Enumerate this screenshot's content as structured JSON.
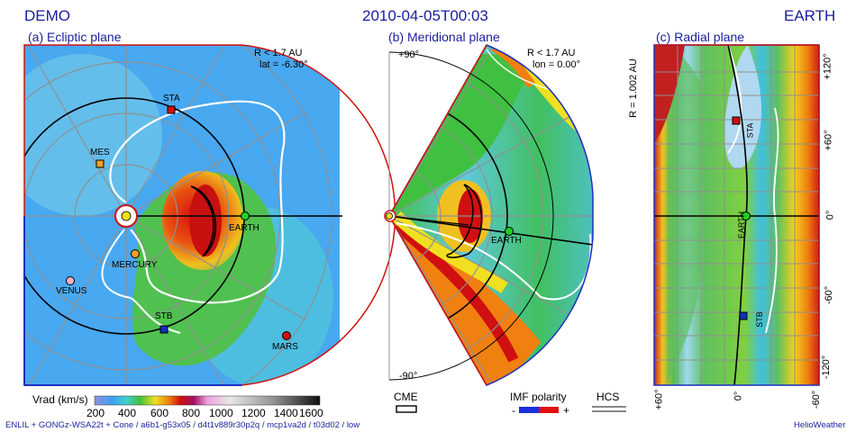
{
  "header": {
    "left": "DEMO",
    "center": "2010-04-05T00:03",
    "right": "EARTH"
  },
  "panels": {
    "ecliptic": {
      "title": "(a) Ecliptic plane",
      "range": "R < 1.7 AU",
      "lat": "lat = -6.30°",
      "bodies": [
        {
          "name": "STA",
          "color": "#d01010"
        },
        {
          "name": "MES",
          "color": "#f0a020"
        },
        {
          "name": "EARTH",
          "color": "#20d020"
        },
        {
          "name": "MERCURY",
          "color": "#f0a020"
        },
        {
          "name": "VENUS",
          "color": "#f4b0c0"
        },
        {
          "name": "STB",
          "color": "#1030c0"
        },
        {
          "name": "MARS",
          "color": "#d01010"
        }
      ]
    },
    "meridional": {
      "title": "(b) Meridional plane",
      "range": "R < 1.7 AU",
      "lon": "lon = 0.00°",
      "top_tick": "+90°",
      "bottom_tick": "-90°",
      "body": "EARTH"
    },
    "radial": {
      "title": "(c) Radial plane",
      "r_label": "R = 1.002 AU",
      "y_ticks": [
        "+120°",
        "+60°",
        "0°",
        "-60°",
        "-120°"
      ],
      "x_ticks": [
        "+60°",
        "0°",
        "-60°"
      ],
      "bodies": [
        "STA",
        "EARTH",
        "STB"
      ]
    }
  },
  "colorbar": {
    "label": "Vrad (km/s)",
    "ticks": [
      "200",
      "400",
      "600",
      "800",
      "1000",
      "1200",
      "1400",
      "1600"
    ]
  },
  "legend": {
    "cme": "CME",
    "imf": "IMF polarity",
    "imf_minus": "-",
    "imf_plus": "+",
    "hcs": "HCS"
  },
  "footer": {
    "left": "ENLIL + GONGz-WSA22t + Cone / a6b1-g53x05 / d4t1v889r30p2q / mcp1va2d / t03d02 / low",
    "right": "HelioWeather"
  }
}
